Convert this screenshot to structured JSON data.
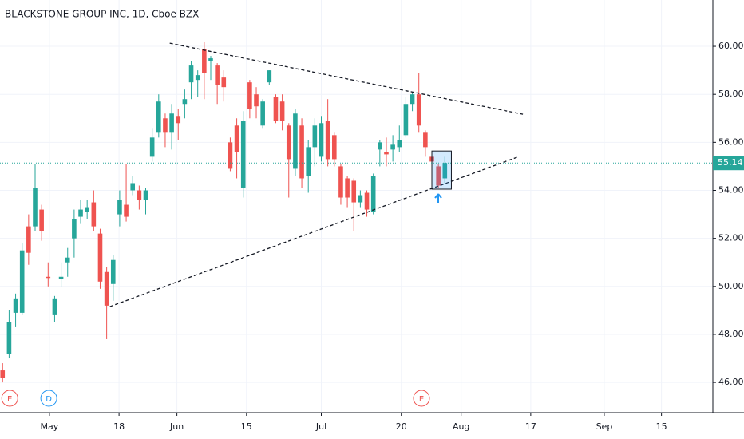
{
  "chart_data": {
    "type": "candlestick",
    "title": "BLACKSTONE GROUP INC, 1D, Cboe BZX",
    "up_color": "#26a69a",
    "down_color": "#ef5350",
    "grid": true,
    "xlim": [
      -0.4,
      109.2
    ],
    "ylim": [
      44.74,
      61.93
    ],
    "yticks": [
      {
        "value": 46,
        "label": "46.00"
      },
      {
        "value": 48,
        "label": "48.00"
      },
      {
        "value": 50,
        "label": "50.00"
      },
      {
        "value": 52,
        "label": "52.00"
      },
      {
        "value": 54,
        "label": "54.00"
      },
      {
        "value": 56,
        "label": "56.00"
      },
      {
        "value": 58,
        "label": "58.00"
      },
      {
        "value": 60,
        "label": "60.00"
      }
    ],
    "xticks": [
      {
        "value": 7.2,
        "label": "May"
      },
      {
        "value": 17.9,
        "label": "18"
      },
      {
        "value": 26.8,
        "label": "Jun"
      },
      {
        "value": 37.5,
        "label": "15"
      },
      {
        "value": 49.0,
        "label": "Jul"
      },
      {
        "value": 61.3,
        "label": "20"
      },
      {
        "value": 70.5,
        "label": "Aug"
      },
      {
        "value": 81.2,
        "label": "17"
      },
      {
        "value": 92.5,
        "label": "Sep"
      },
      {
        "value": 101.3,
        "label": "15"
      }
    ],
    "x": [
      0,
      1,
      2,
      3,
      4,
      5,
      6,
      7,
      8,
      9,
      10,
      11,
      12,
      13,
      14,
      15,
      16,
      17,
      18,
      19,
      20,
      21,
      22,
      23,
      24,
      25,
      26,
      27,
      28,
      29,
      30,
      31,
      32,
      33,
      34,
      35,
      36,
      37,
      38,
      39,
      40,
      41,
      42,
      43,
      44,
      45,
      46,
      47,
      48,
      49,
      50,
      51,
      52,
      53,
      54,
      55,
      56,
      57,
      58,
      59,
      60,
      61,
      62,
      63,
      64,
      65,
      66,
      67,
      68
    ],
    "open": [
      46.5,
      47.2,
      48.9,
      48.9,
      52.5,
      52.5,
      53.2,
      50.4,
      48.8,
      50.3,
      51.0,
      52.0,
      52.9,
      53.1,
      53.5,
      52.2,
      50.6,
      50.1,
      53.0,
      53.4,
      54.0,
      54.0,
      53.6,
      55.4,
      56.4,
      57.0,
      56.4,
      57.1,
      57.6,
      58.5,
      58.6,
      59.9,
      59.4,
      59.2,
      58.7,
      56.0,
      56.7,
      54.1,
      58.5,
      58.0,
      56.7,
      58.5,
      57.9,
      57.7,
      56.7,
      54.9,
      56.7,
      54.6,
      55.8,
      55.4,
      56.9,
      56.3,
      55.0,
      54.5,
      54.4,
      53.5,
      53.9,
      53.1,
      55.7,
      55.6,
      55.7,
      55.8,
      56.3,
      57.6,
      58.0,
      56.4,
      55.4,
      55.0,
      54.5
    ],
    "high": [
      46.8,
      49.0,
      49.7,
      51.8,
      53.0,
      55.1,
      53.4,
      51.0,
      49.6,
      51.0,
      51.6,
      53.2,
      53.6,
      53.6,
      54.0,
      52.4,
      50.8,
      51.3,
      54.0,
      55.1,
      54.6,
      54.2,
      54.1,
      56.6,
      58.0,
      57.2,
      57.6,
      57.4,
      58.2,
      59.4,
      59.0,
      60.2,
      59.6,
      59.3,
      59.0,
      56.2,
      57.0,
      57.3,
      58.6,
      58.3,
      57.8,
      59.0,
      58.0,
      58.0,
      56.8,
      57.4,
      57.0,
      56.1,
      57.0,
      57.1,
      57.8,
      56.4,
      55.1,
      54.6,
      54.5,
      54.0,
      54.0,
      54.7,
      56.1,
      56.2,
      56.3,
      56.7,
      57.9,
      58.1,
      58.9,
      56.5,
      55.5,
      55.1,
      55.4
    ],
    "low": [
      46.0,
      47.0,
      48.3,
      48.8,
      50.9,
      52.3,
      51.9,
      50.0,
      48.5,
      50.0,
      50.4,
      51.2,
      52.6,
      52.8,
      52.3,
      49.9,
      47.8,
      49.4,
      52.5,
      52.7,
      53.8,
      53.2,
      53.0,
      55.2,
      56.2,
      55.8,
      55.7,
      56.1,
      57.0,
      57.8,
      57.9,
      57.8,
      58.6,
      57.6,
      57.7,
      54.8,
      54.5,
      53.7,
      57.0,
      57.0,
      56.6,
      58.4,
      56.8,
      56.5,
      53.7,
      54.6,
      54.1,
      53.9,
      55.0,
      55.2,
      55.0,
      55.0,
      53.4,
      53.3,
      52.3,
      53.3,
      52.9,
      53.0,
      55.0,
      55.0,
      55.2,
      55.6,
      56.2,
      57.3,
      56.4,
      55.4,
      55.0,
      54.1,
      54.3
    ],
    "close": [
      46.2,
      48.5,
      49.5,
      51.5,
      51.4,
      54.1,
      52.3,
      50.35,
      49.5,
      50.4,
      51.2,
      52.8,
      53.2,
      53.3,
      52.5,
      50.2,
      49.2,
      51.1,
      53.6,
      52.9,
      54.3,
      53.6,
      54.0,
      56.2,
      57.7,
      56.4,
      57.2,
      56.8,
      57.8,
      59.2,
      58.8,
      58.9,
      59.5,
      58.4,
      58.3,
      54.9,
      55.6,
      56.9,
      57.4,
      57.5,
      57.7,
      59.0,
      56.9,
      56.9,
      55.3,
      57.2,
      54.5,
      55.8,
      56.7,
      56.8,
      55.3,
      55.3,
      53.7,
      53.7,
      53.5,
      53.8,
      53.2,
      54.6,
      56.0,
      55.5,
      55.9,
      56.1,
      57.6,
      58.0,
      56.7,
      55.8,
      55.2,
      54.2,
      55.14
    ],
    "last_price": 55.14,
    "last_price_color": "#26a69a",
    "events": [
      {
        "label": "E",
        "x": 1.1,
        "color": "#ef5350"
      },
      {
        "label": "D",
        "x": 7.1,
        "color": "#2196f3"
      },
      {
        "label": "E",
        "x": 64.4,
        "color": "#ef5350"
      }
    ],
    "trendlines": [
      {
        "x": [
          25.7,
          80.0
        ],
        "y": [
          60.13,
          57.17
        ]
      },
      {
        "x": [
          16.5,
          79.1
        ],
        "y": [
          49.16,
          55.38
        ]
      }
    ],
    "highlight": {
      "x": [
        66.0,
        69.0
      ],
      "y": [
        54.05,
        55.64
      ],
      "color": "#2196f3"
    }
  }
}
